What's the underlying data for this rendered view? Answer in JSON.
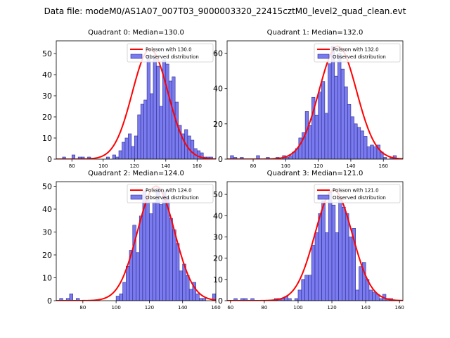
{
  "figure_title": "Data file: modeM0/AS1A07_007T03_9000003320_22415cztM0_level2_quad_clean.evt",
  "colors": {
    "bar_fill": "#7b7bf0",
    "bar_edge": "#2a2a8a",
    "poisson_line": "#ff0000",
    "axes": "#000000"
  },
  "chart_data": [
    {
      "type": "bar",
      "title": "Quadrant 0: Median=130.0",
      "median": 130,
      "xlim": [
        70,
        172
      ],
      "ylim": [
        0,
        56
      ],
      "xticks": [
        80,
        100,
        120,
        140,
        160
      ],
      "yticks": [
        0,
        10,
        20,
        30,
        40,
        50
      ],
      "bin_width": 2,
      "bins_x": [
        74,
        76,
        78,
        80,
        82,
        84,
        86,
        88,
        90,
        92,
        94,
        96,
        98,
        100,
        102,
        104,
        106,
        108,
        110,
        112,
        114,
        116,
        118,
        120,
        122,
        124,
        126,
        128,
        130,
        132,
        134,
        136,
        138,
        140,
        142,
        144,
        146,
        148,
        150,
        152,
        154,
        156,
        158,
        160,
        162,
        164,
        166,
        168
      ],
      "counts": [
        1,
        0,
        0,
        2,
        0,
        1,
        1,
        0,
        1,
        0,
        0,
        0,
        0,
        0,
        1,
        0,
        2,
        1,
        4,
        8,
        10,
        12,
        6,
        11,
        21,
        26,
        28,
        49,
        31,
        48,
        44,
        25,
        47,
        45,
        37,
        39,
        27,
        16,
        12,
        14,
        11,
        9,
        5,
        4,
        3,
        1,
        1,
        1
      ],
      "poisson_scale": 52,
      "legend": [
        "Poisson with 130.0",
        "Observed distribution"
      ]
    },
    {
      "type": "bar",
      "title": "Quadrant 1: Median=132.0",
      "median": 132,
      "xlim": [
        64,
        172
      ],
      "ylim": [
        0,
        67
      ],
      "xticks": [
        80,
        100,
        120,
        140,
        160
      ],
      "yticks": [
        0,
        20,
        40,
        60
      ],
      "bin_width": 2,
      "bins_x": [
        66,
        68,
        70,
        72,
        74,
        76,
        78,
        80,
        82,
        84,
        86,
        88,
        90,
        92,
        94,
        96,
        98,
        100,
        102,
        104,
        106,
        108,
        110,
        112,
        114,
        116,
        118,
        120,
        122,
        124,
        126,
        128,
        130,
        132,
        134,
        136,
        138,
        140,
        142,
        144,
        146,
        148,
        150,
        152,
        154,
        156,
        158,
        160,
        162,
        164,
        166,
        168
      ],
      "counts": [
        2,
        1,
        0,
        1,
        0,
        0,
        0,
        0,
        2,
        0,
        0,
        1,
        0,
        0,
        1,
        0,
        2,
        1,
        2,
        4,
        6,
        12,
        15,
        27,
        19,
        35,
        25,
        38,
        44,
        26,
        54,
        64,
        47,
        60,
        51,
        41,
        31,
        24,
        20,
        18,
        16,
        13,
        7,
        8,
        7,
        8,
        4,
        1,
        0,
        1,
        2,
        0
      ],
      "poisson_scale": 64,
      "legend": [
        "Poisson with 132.0",
        "Observed distribution"
      ]
    },
    {
      "type": "bar",
      "title": "Quadrant 2: Median=124.0",
      "median": 124,
      "xlim": [
        64,
        160
      ],
      "ylim": [
        0,
        52
      ],
      "xticks": [
        80,
        100,
        120,
        140,
        160
      ],
      "yticks": [
        0,
        10,
        20,
        30,
        40,
        50
      ],
      "bin_width": 2,
      "bins_x": [
        66,
        68,
        70,
        72,
        74,
        76,
        78,
        80,
        82,
        84,
        86,
        88,
        90,
        92,
        94,
        96,
        98,
        100,
        102,
        104,
        106,
        108,
        110,
        112,
        114,
        116,
        118,
        120,
        122,
        124,
        126,
        128,
        130,
        132,
        134,
        136,
        138,
        140,
        142,
        144,
        146,
        148,
        150,
        152,
        154,
        156,
        158
      ],
      "counts": [
        1,
        0,
        1,
        3,
        0,
        1,
        0,
        0,
        0,
        0,
        0,
        0,
        0,
        0,
        0,
        0,
        0,
        2,
        3,
        8,
        15,
        22,
        33,
        21,
        37,
        48,
        44,
        38,
        43,
        49,
        42,
        48,
        45,
        36,
        31,
        25,
        13,
        16,
        11,
        5,
        8,
        3,
        1,
        1,
        0,
        0,
        3
      ],
      "poisson_scale": 50,
      "legend": [
        "Poisson with 124.0",
        "Observed distribution"
      ]
    },
    {
      "type": "bar",
      "title": "Quadrant 3: Median=121.0",
      "median": 121,
      "xlim": [
        58,
        162
      ],
      "ylim": [
        0,
        56
      ],
      "xticks": [
        60,
        80,
        100,
        120,
        140,
        160
      ],
      "yticks": [
        0,
        10,
        20,
        30,
        40,
        50
      ],
      "bin_width": 2,
      "bins_x": [
        62,
        64,
        66,
        68,
        70,
        72,
        74,
        76,
        78,
        80,
        82,
        84,
        86,
        88,
        90,
        92,
        94,
        96,
        98,
        100,
        102,
        104,
        106,
        108,
        110,
        112,
        114,
        116,
        118,
        120,
        122,
        124,
        126,
        128,
        130,
        132,
        134,
        136,
        138,
        140,
        142,
        144,
        146,
        148,
        150,
        152,
        154,
        156
      ],
      "counts": [
        1,
        0,
        1,
        1,
        0,
        1,
        0,
        0,
        0,
        0,
        0,
        0,
        1,
        1,
        1,
        2,
        1,
        0,
        1,
        5,
        10,
        12,
        12,
        26,
        32,
        41,
        47,
        32,
        51,
        45,
        32,
        48,
        44,
        41,
        30,
        34,
        5,
        16,
        18,
        10,
        5,
        4,
        3,
        1,
        3,
        1,
        1,
        0
      ],
      "poisson_scale": 52,
      "legend": [
        "Poisson with 121.0",
        "Observed distribution"
      ]
    }
  ]
}
